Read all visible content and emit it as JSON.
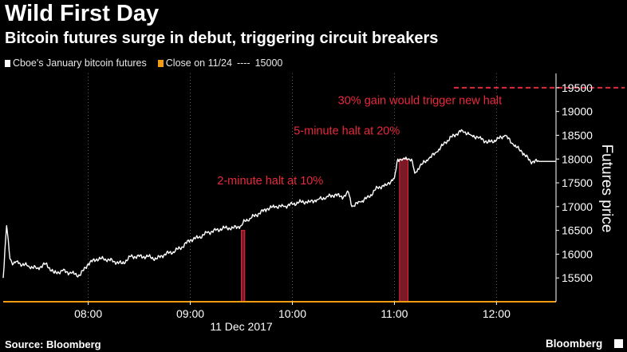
{
  "header": {
    "title": "Wild First Day",
    "subtitle": "Bitcoin futures surge in debut, triggering circuit breakers"
  },
  "legend": {
    "series_label": "Cboe's January bitcoin futures",
    "close_label": "Close on 11/24",
    "close_dash": "----",
    "close_value": "15000"
  },
  "footer": {
    "source": "Source: Bloomberg",
    "brand": "Bloomberg"
  },
  "colors": {
    "background": "#000000",
    "line": "#ffffff",
    "annotation": "#e8283c",
    "halt_fill": "#7a1a26",
    "close_line": "#f39c12",
    "grid": "#5a5a5a"
  },
  "chart_data": {
    "type": "line",
    "title": "Wild First Day",
    "subtitle": "Bitcoin futures surge in debut, triggering circuit breakers",
    "ylabel": "Futures price",
    "xlabel": "11 Dec 2017",
    "ylim": [
      15000,
      19800
    ],
    "xlim": [
      "07:10",
      "12:35"
    ],
    "x_ticks": [
      "08:00",
      "09:00",
      "10:00",
      "11:00",
      "12:00"
    ],
    "y_ticks": [
      15500,
      16000,
      16500,
      17000,
      17500,
      18000,
      18500,
      19000,
      19500
    ],
    "grid": "vertical dotted",
    "legend_position": "top-left",
    "series": [
      {
        "name": "Cboe's January bitcoin futures",
        "x": [
          "07:10",
          "07:12",
          "07:14",
          "07:16",
          "07:18",
          "07:20",
          "07:25",
          "07:30",
          "07:35",
          "07:40",
          "07:45",
          "07:50",
          "07:55",
          "08:00",
          "08:05",
          "08:10",
          "08:15",
          "08:20",
          "08:25",
          "08:30",
          "08:35",
          "08:40",
          "08:45",
          "08:50",
          "08:55",
          "09:00",
          "09:05",
          "09:10",
          "09:15",
          "09:20",
          "09:25",
          "09:30",
          "09:32",
          "09:35",
          "09:40",
          "09:45",
          "09:50",
          "09:55",
          "10:00",
          "10:05",
          "10:10",
          "10:15",
          "10:20",
          "10:25",
          "10:30",
          "10:33",
          "10:35",
          "10:40",
          "10:45",
          "10:50",
          "10:55",
          "11:00",
          "11:02",
          "11:05",
          "11:08",
          "11:10",
          "11:12",
          "11:15",
          "11:20",
          "11:25",
          "11:30",
          "11:35",
          "11:40",
          "11:45",
          "11:50",
          "11:55",
          "12:00",
          "12:05",
          "12:10",
          "12:15",
          "12:20",
          "12:25"
        ],
        "values": [
          15500,
          16600,
          15900,
          15800,
          15850,
          15800,
          15750,
          15700,
          15800,
          15600,
          15650,
          15600,
          15550,
          15800,
          15900,
          15900,
          15850,
          15800,
          15950,
          15950,
          15950,
          15900,
          16000,
          16050,
          16150,
          16300,
          16350,
          16450,
          16500,
          16550,
          16550,
          16600,
          16700,
          16750,
          16850,
          16950,
          17000,
          17000,
          17050,
          17100,
          17100,
          17150,
          17200,
          17250,
          17200,
          17300,
          17000,
          17100,
          17200,
          17400,
          17450,
          17600,
          18000,
          18000,
          18000,
          18000,
          17700,
          17850,
          18000,
          18150,
          18350,
          18500,
          18600,
          18500,
          18450,
          18350,
          18400,
          18500,
          18300,
          18150,
          17950,
          17950
        ]
      }
    ],
    "reference_lines": [
      {
        "name": "Close on 11/24",
        "value": 15000
      },
      {
        "name": "30% gain would trigger new halt",
        "value": 19500
      }
    ],
    "halt_bands": [
      {
        "label": "2-minute halt at 10%",
        "from": "09:30",
        "to": "09:32",
        "level": 16500
      },
      {
        "label": "5-minute halt at 20%",
        "from": "11:03",
        "to": "11:08",
        "level": 18000
      }
    ],
    "annotations": [
      {
        "text": "30% gain would trigger new halt",
        "x": "11:15",
        "y": 19150
      },
      {
        "text": "5-minute halt at 20%",
        "x": "10:32",
        "y": 18520
      },
      {
        "text": "2-minute halt at 10%",
        "x": "09:47",
        "y": 17470
      }
    ]
  }
}
